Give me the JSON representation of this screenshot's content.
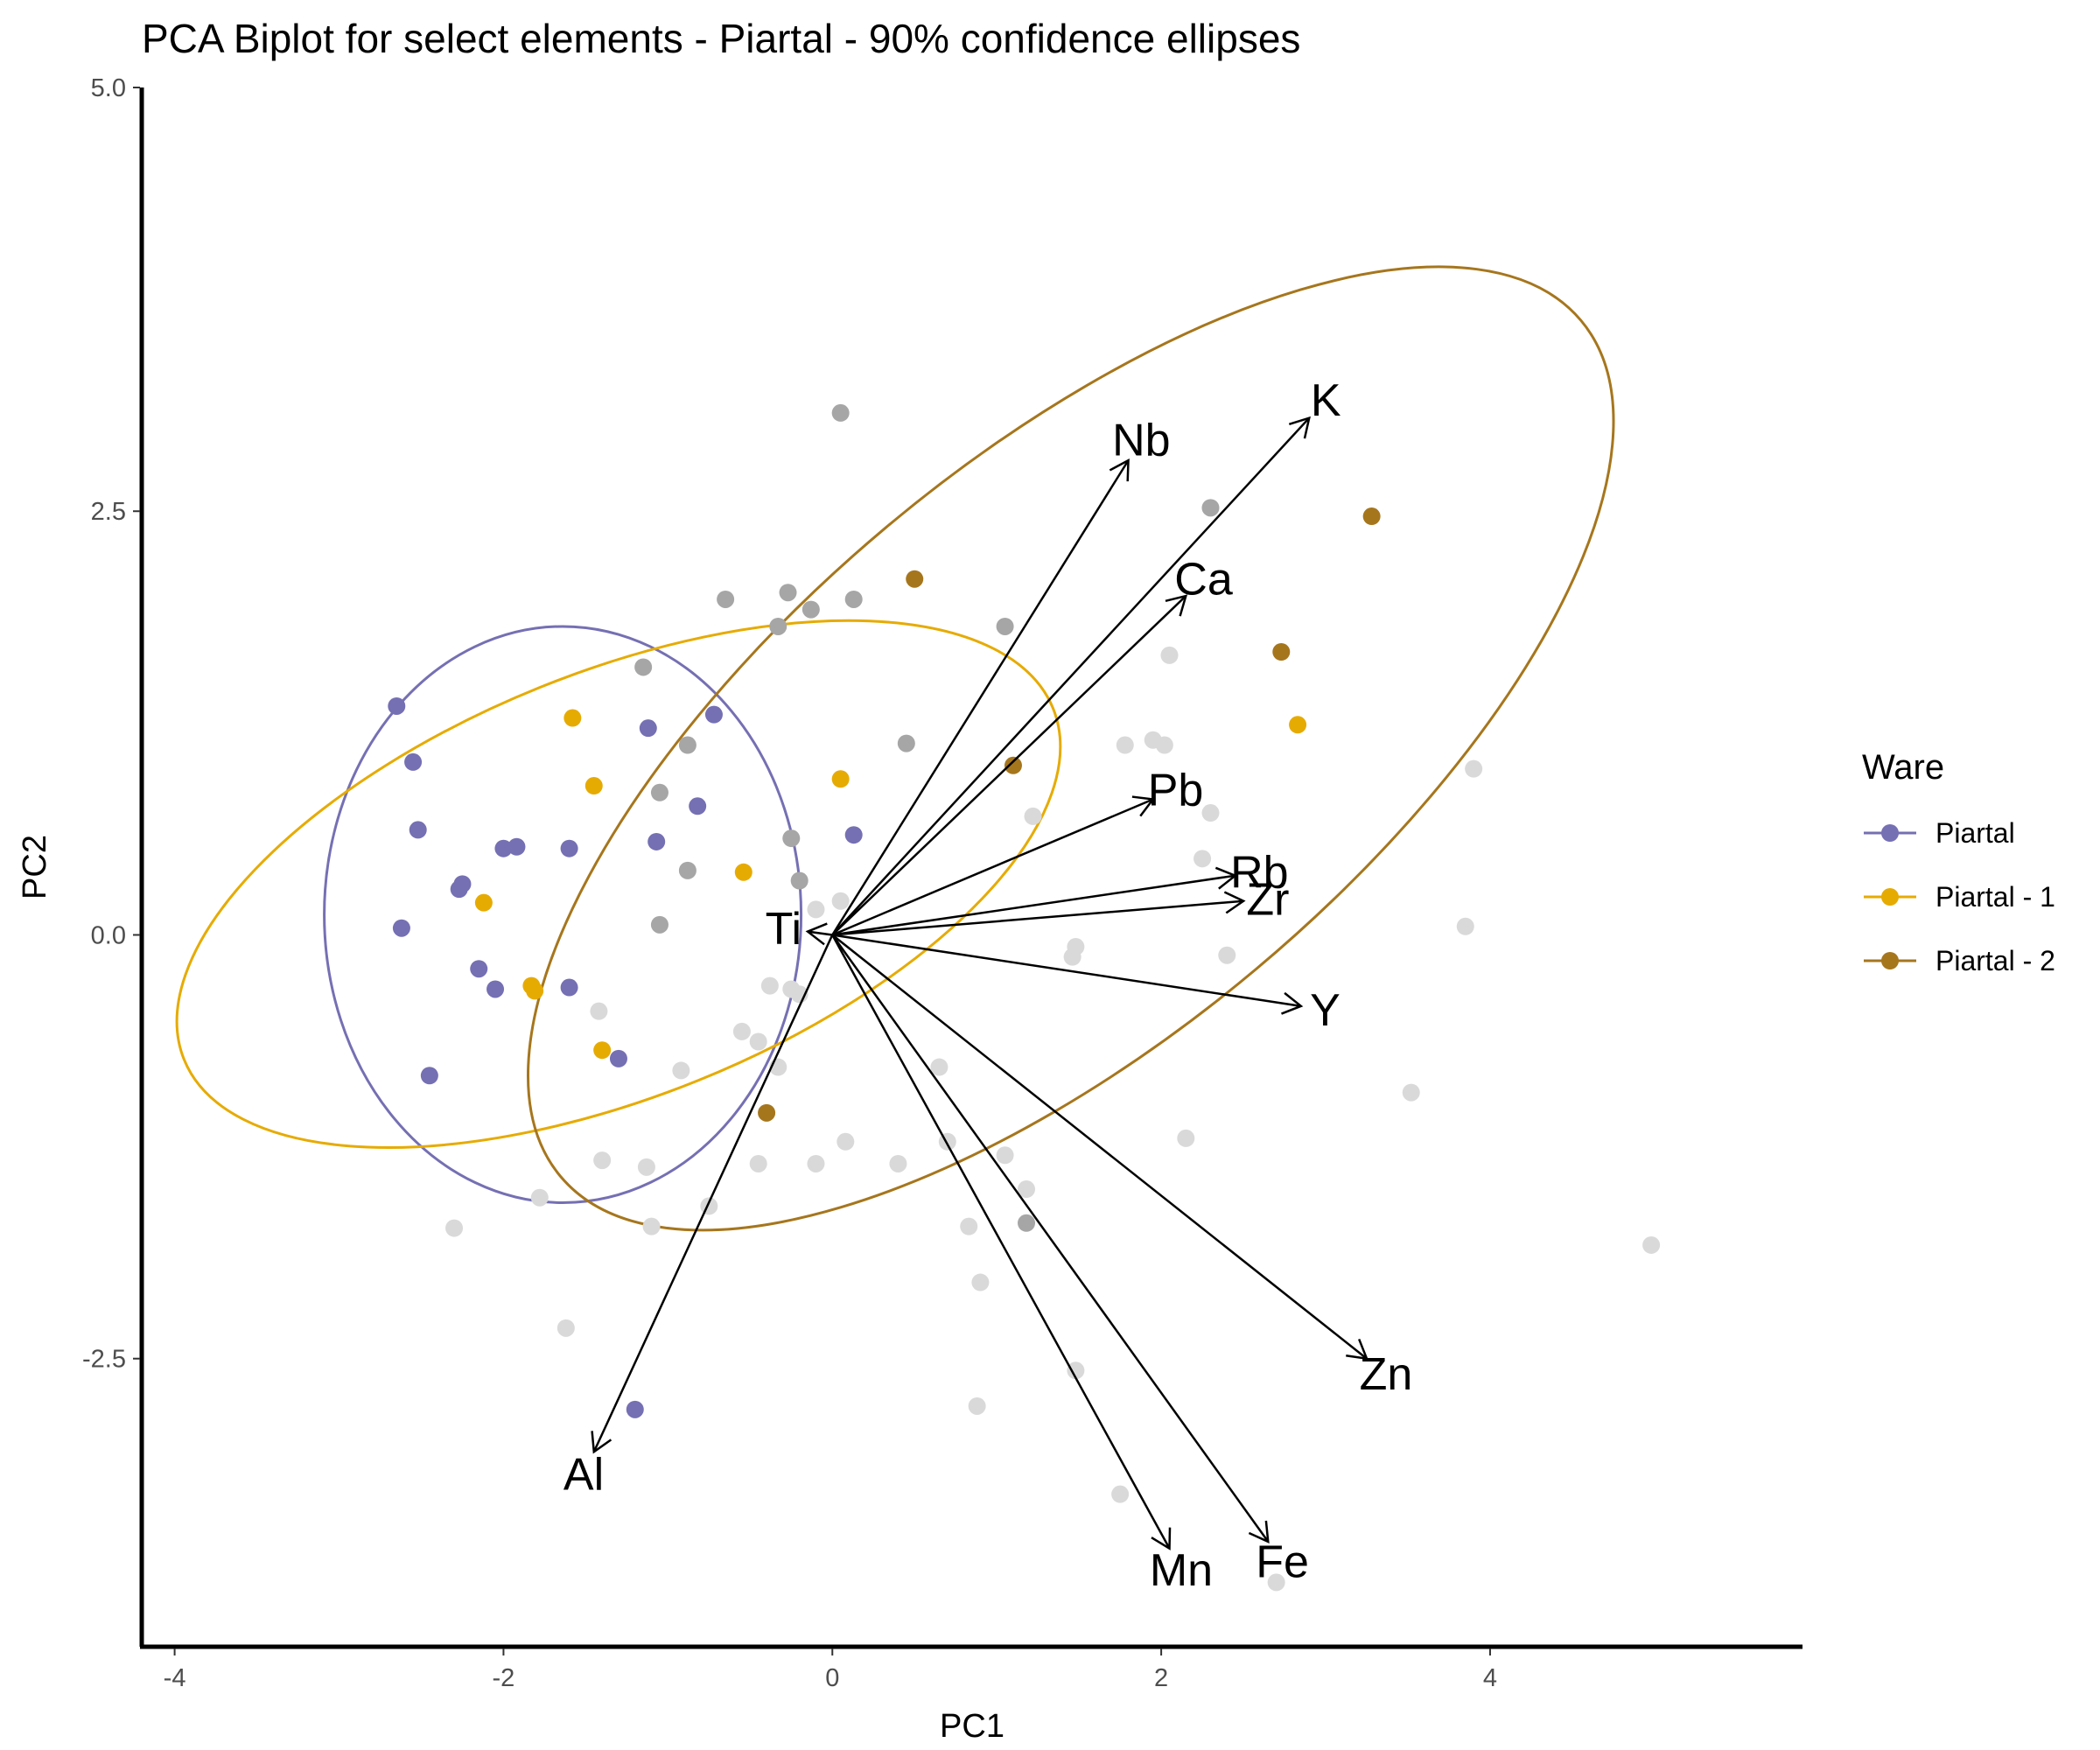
{
  "chart_data": {
    "type": "scatter",
    "title": "PCA Biplot for select elements - Piartal - 90% confidence ellipses",
    "xlabel": "PC1",
    "ylabel": "PC2",
    "xlim": [
      -4.2,
      5.9
    ],
    "ylim": [
      -4.2,
      5.0
    ],
    "x_ticks": [
      "-4",
      "-2",
      "0",
      "2",
      "4"
    ],
    "y_ticks": [
      "5.0",
      "2.5",
      "0.0",
      "-2.5"
    ],
    "grid": false,
    "legend_position": "right",
    "legend": {
      "title": "Ware",
      "items": [
        "Piartal",
        "Piartal - 1",
        "Piartal - 2"
      ]
    },
    "colors": {
      "Piartal": "#7570b3",
      "Piartal - 1": "#e6ab02",
      "Piartal - 2": "#a6761d",
      "other_dark": "#a6a6a6",
      "other_light": "#d9d9d9"
    },
    "series": [
      {
        "name": "Piartal",
        "points": [
          [
            -2.65,
            1.35
          ],
          [
            -2.55,
            1.02
          ],
          [
            -2.52,
            0.62
          ],
          [
            -2.25,
            0.3
          ],
          [
            -2.27,
            0.27
          ],
          [
            -2.62,
            0.04
          ],
          [
            -2.0,
            0.51
          ],
          [
            -1.92,
            0.52
          ],
          [
            -1.6,
            0.51
          ],
          [
            -2.15,
            -0.2
          ],
          [
            -2.05,
            -0.32
          ],
          [
            -1.6,
            -0.31
          ],
          [
            -2.45,
            -0.83
          ],
          [
            -1.12,
            1.22
          ],
          [
            -0.72,
            1.3
          ],
          [
            -1.07,
            0.55
          ],
          [
            -0.82,
            0.76
          ],
          [
            0.13,
            0.59
          ],
          [
            -1.3,
            -0.73
          ],
          [
            -1.2,
            -2.8
          ]
        ]
      },
      {
        "name": "Piartal - 1",
        "points": [
          [
            -1.58,
            1.28
          ],
          [
            -1.45,
            0.88
          ],
          [
            -2.12,
            0.19
          ],
          [
            -1.83,
            -0.3
          ],
          [
            -1.81,
            -0.33
          ],
          [
            -1.4,
            -0.68
          ],
          [
            -0.54,
            0.37
          ],
          [
            0.05,
            0.92
          ],
          [
            2.83,
            1.24
          ]
        ]
      },
      {
        "name": "Piartal - 2",
        "points": [
          [
            0.5,
            2.1
          ],
          [
            3.28,
            2.47
          ],
          [
            2.73,
            1.67
          ],
          [
            1.1,
            1.0
          ],
          [
            -0.4,
            -1.05
          ]
        ]
      },
      {
        "name": "other",
        "points": [
          [
            0.05,
            3.08
          ],
          [
            2.3,
            2.52
          ],
          [
            -0.65,
            1.98
          ],
          [
            -0.27,
            2.02
          ],
          [
            0.13,
            1.98
          ],
          [
            -0.13,
            1.92
          ],
          [
            -0.33,
            1.82
          ],
          [
            1.05,
            1.82
          ],
          [
            -1.15,
            1.58
          ],
          [
            0.45,
            1.13
          ],
          [
            -0.88,
            1.12
          ],
          [
            -1.05,
            0.84
          ],
          [
            -0.25,
            0.57
          ],
          [
            -0.88,
            0.38
          ],
          [
            -0.2,
            0.32
          ],
          [
            -1.05,
            0.06
          ],
          [
            1.18,
            -1.7
          ]
        ]
      },
      {
        "name": "other_light",
        "points": [
          [
            2.05,
            1.65
          ],
          [
            1.78,
            1.12
          ],
          [
            1.95,
            1.15
          ],
          [
            2.02,
            1.12
          ],
          [
            3.9,
            0.98
          ],
          [
            1.22,
            0.7
          ],
          [
            2.3,
            0.72
          ],
          [
            2.25,
            0.45
          ],
          [
            3.85,
            0.05
          ],
          [
            0.05,
            0.2
          ],
          [
            -0.1,
            0.15
          ],
          [
            1.48,
            -0.07
          ],
          [
            1.46,
            -0.13
          ],
          [
            2.4,
            -0.12
          ],
          [
            -0.38,
            -0.3
          ],
          [
            -0.25,
            -0.32
          ],
          [
            -0.2,
            -0.35
          ],
          [
            -0.55,
            -0.57
          ],
          [
            -0.45,
            -0.63
          ],
          [
            -1.42,
            -0.45
          ],
          [
            -0.92,
            -0.8
          ],
          [
            -0.33,
            -0.78
          ],
          [
            0.65,
            -0.78
          ],
          [
            3.52,
            -0.93
          ],
          [
            0.7,
            -1.22
          ],
          [
            1.05,
            -1.3
          ],
          [
            2.15,
            -1.2
          ],
          [
            0.08,
            -1.22
          ],
          [
            -0.1,
            -1.35
          ],
          [
            -0.45,
            -1.35
          ],
          [
            -1.4,
            -1.33
          ],
          [
            -1.13,
            -1.37
          ],
          [
            0.4,
            -1.35
          ],
          [
            1.18,
            -1.5
          ],
          [
            -1.78,
            -1.55
          ],
          [
            -0.75,
            -1.6
          ],
          [
            -2.3,
            -1.73
          ],
          [
            -1.1,
            -1.72
          ],
          [
            0.83,
            -1.72
          ],
          [
            0.9,
            -2.05
          ],
          [
            -1.62,
            -2.32
          ],
          [
            1.48,
            -2.57
          ],
          [
            0.88,
            -2.78
          ],
          [
            1.75,
            -3.3
          ],
          [
            2.7,
            -3.82
          ],
          [
            4.98,
            -1.83
          ]
        ]
      }
    ],
    "loadings": [
      {
        "label": "Nb",
        "x": 1.8,
        "y": 2.8
      },
      {
        "label": "K",
        "x": 2.9,
        "y": 3.05
      },
      {
        "label": "Ca",
        "x": 2.15,
        "y": 2.0
      },
      {
        "label": "Pb",
        "x": 1.95,
        "y": 0.8
      },
      {
        "label": "Rb",
        "x": 2.45,
        "y": 0.35
      },
      {
        "label": "Zr",
        "x": 2.5,
        "y": 0.2
      },
      {
        "label": "Ti",
        "x": -0.15,
        "y": 0.02
      },
      {
        "label": "Y",
        "x": 2.85,
        "y": -0.42
      },
      {
        "label": "Zn",
        "x": 3.25,
        "y": -2.5
      },
      {
        "label": "Al",
        "x": -1.45,
        "y": -3.05
      },
      {
        "label": "Mn",
        "x": 2.05,
        "y": -3.62
      },
      {
        "label": "Fe",
        "x": 2.65,
        "y": -3.58
      }
    ],
    "ellipses": [
      {
        "group": "Piartal",
        "cx": -1.64,
        "cy": 0.12,
        "rx": 1.45,
        "ry": 1.7,
        "angle": 0
      },
      {
        "group": "Piartal - 1",
        "cx": -1.3,
        "cy": 0.3,
        "rx": 2.85,
        "ry": 1.25,
        "angle": 22
      },
      {
        "group": "Piartal - 2",
        "cx": 1.45,
        "cy": 1.1,
        "rx": 4.05,
        "ry": 1.7,
        "angle": 40
      }
    ]
  }
}
